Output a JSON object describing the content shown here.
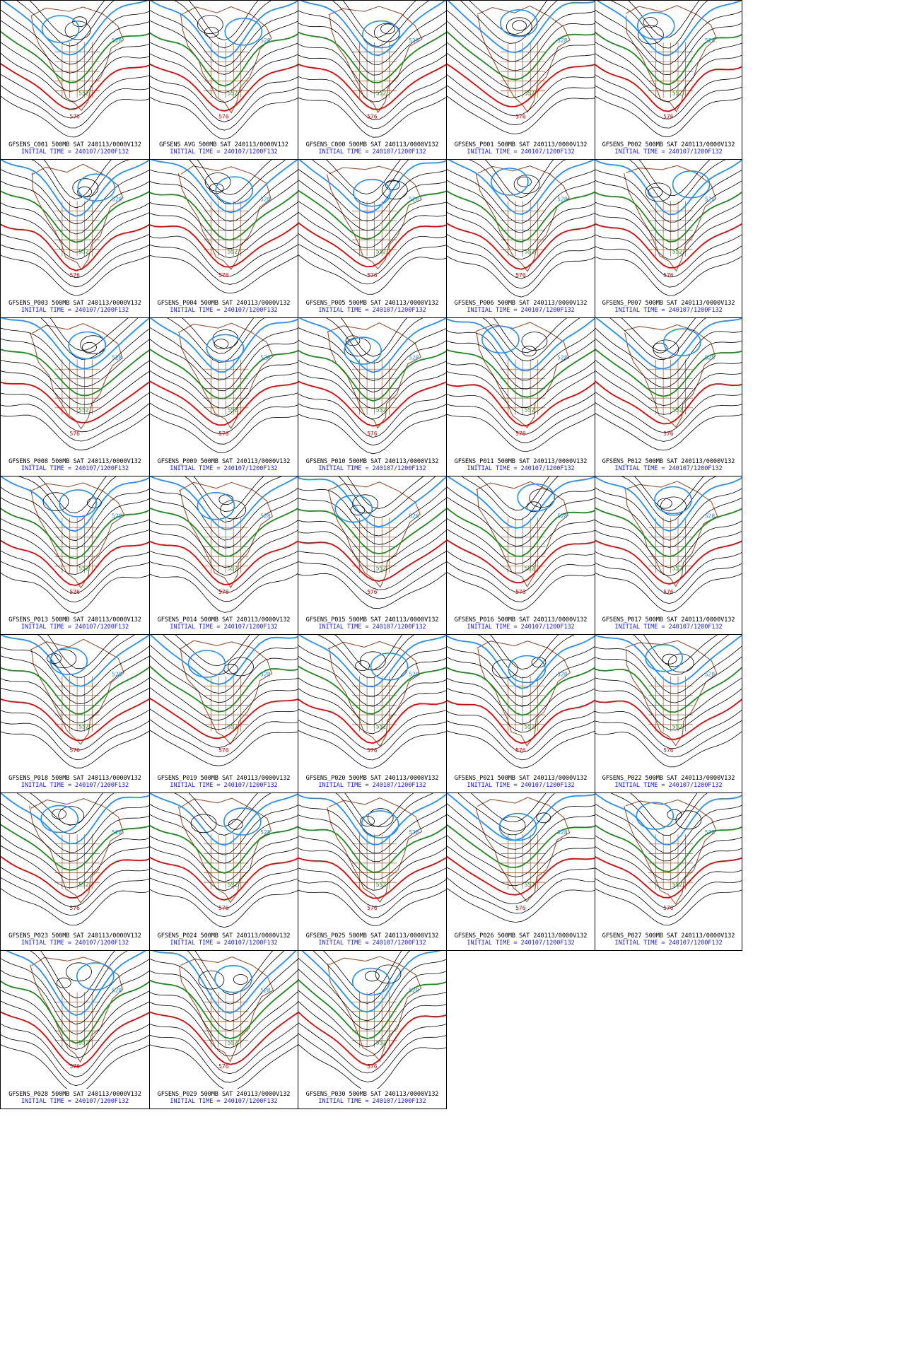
{
  "figure": {
    "columns": 5,
    "colors": {
      "background": "#ffffff",
      "border": "#000000",
      "contour": "#000000",
      "contour_528": "#1e90ff",
      "contour_552": "#1a8a1a",
      "contour_576": "#e60000",
      "coastline": "#a0522d",
      "caption_line1": "#000000",
      "caption_line2": "#1a1aff"
    }
  },
  "panels": [
    {
      "id": "C001",
      "title": "GFSENS_C001 500MB SAT 240113/0000V132",
      "init": "INITIAL TIME = 240107/1200F132",
      "labels": [
        "528",
        "552",
        "576"
      ]
    },
    {
      "id": "AVG",
      "title": "GFSENS AVG 500MB SAT 240113/0000V132",
      "init": "INITIAL TIME = 240107/1200F132",
      "labels": [
        "528",
        "552",
        "576"
      ]
    },
    {
      "id": "C000",
      "title": "GFSENS_C000 500MB SAT 240113/0000V132",
      "init": "INITIAL TIME = 240107/1200F132",
      "labels": [
        "528",
        "552",
        "576"
      ]
    },
    {
      "id": "P001",
      "title": "GFSENS_P001 500MB SAT 240113/0000V132",
      "init": "INITIAL TIME = 240107/1200F132",
      "labels": [
        "528",
        "552",
        "576"
      ]
    },
    {
      "id": "P002",
      "title": "GFSENS_P002 500MB SAT 240113/0000V132",
      "init": "INITIAL TIME = 240107/1200F132",
      "labels": [
        "528",
        "552",
        "576"
      ]
    },
    {
      "id": "P003",
      "title": "GFSENS_P003 500MB SAT 240113/0000V132",
      "init": "INITIAL TIME = 240107/1200F132",
      "labels": [
        "528",
        "552",
        "576"
      ]
    },
    {
      "id": "P004",
      "title": "GFSENS_P004 500MB SAT 240113/0000V132",
      "init": "INITIAL TIME = 240107/1200F132",
      "labels": [
        "528",
        "552",
        "576"
      ]
    },
    {
      "id": "P005",
      "title": "GFSENS_P005 500MB SAT 240113/0000V132",
      "init": "INITIAL TIME = 240107/1200F132",
      "labels": [
        "528",
        "552",
        "576"
      ]
    },
    {
      "id": "P006",
      "title": "GFSENS_P006 500MB SAT 240113/0000V132",
      "init": "INITIAL TIME = 240107/1200F132",
      "labels": [
        "528",
        "552",
        "576"
      ]
    },
    {
      "id": "P007",
      "title": "GFSENS_P007 500MB SAT 240113/0000V132",
      "init": "INITIAL TIME = 240107/1200F132",
      "labels": [
        "528",
        "552",
        "576"
      ]
    },
    {
      "id": "P008",
      "title": "GFSENS_P008 500MB SAT 240113/0000V132",
      "init": "INITIAL TIME = 240107/1200F132",
      "labels": [
        "528",
        "552",
        "576"
      ]
    },
    {
      "id": "P009",
      "title": "GFSENS_P009 500MB SAT 240113/0000V132",
      "init": "INITIAL TIME = 240107/1200F132",
      "labels": [
        "528",
        "552",
        "576"
      ]
    },
    {
      "id": "P010",
      "title": "GFSENS_P010 500MB SAT 240113/0000V132",
      "init": "INITIAL TIME = 240107/1200F132",
      "labels": [
        "528",
        "552",
        "576"
      ]
    },
    {
      "id": "P011",
      "title": "GFSENS_P011 500MB SAT 240113/0000V132",
      "init": "INITIAL TIME = 240107/1200F132",
      "labels": [
        "528",
        "552",
        "576"
      ]
    },
    {
      "id": "P012",
      "title": "GFSENS_P012 500MB SAT 240113/0000V132",
      "init": "INITIAL TIME = 240107/1200F132",
      "labels": [
        "528",
        "552",
        "576"
      ]
    },
    {
      "id": "P013",
      "title": "GFSENS_P013 500MB SAT 240113/0000V132",
      "init": "INITIAL TIME = 240107/1200F132",
      "labels": [
        "528",
        "552",
        "576"
      ]
    },
    {
      "id": "P014",
      "title": "GFSENS_P014 500MB SAT 240113/0000V132",
      "init": "INITIAL TIME = 240107/1200F132",
      "labels": [
        "528",
        "552",
        "576"
      ]
    },
    {
      "id": "P015",
      "title": "GFSENS_P015 500MB SAT 240113/0000V132",
      "init": "INITIAL TIME = 240107/1200F132",
      "labels": [
        "528",
        "552",
        "576"
      ]
    },
    {
      "id": "P016",
      "title": "GFSENS_P016 500MB SAT 240113/0000V132",
      "init": "INITIAL TIME = 240107/1200F132",
      "labels": [
        "528",
        "552",
        "576"
      ]
    },
    {
      "id": "P017",
      "title": "GFSENS_P017 500MB SAT 240113/0000V132",
      "init": "INITIAL TIME = 240107/1200F132",
      "labels": [
        "528",
        "552",
        "576"
      ]
    },
    {
      "id": "P018",
      "title": "GFSENS_P018 500MB SAT 240113/0000V132",
      "init": "INITIAL TIME = 240107/1200F132",
      "labels": [
        "528",
        "552",
        "576"
      ]
    },
    {
      "id": "P019",
      "title": "GFSENS_P019 500MB SAT 240113/0000V132",
      "init": "INITIAL TIME = 240107/1200F132",
      "labels": [
        "528",
        "552",
        "576"
      ]
    },
    {
      "id": "P020",
      "title": "GFSENS_P020 500MB SAT 240113/0000V132",
      "init": "INITIAL TIME = 240107/1200F132",
      "labels": [
        "528",
        "552",
        "576"
      ]
    },
    {
      "id": "P021",
      "title": "GFSENS_P021 500MB SAT 240113/0000V132",
      "init": "INITIAL TIME = 240107/1200F132",
      "labels": [
        "528",
        "552",
        "576"
      ]
    },
    {
      "id": "P022",
      "title": "GFSENS_P022 500MB SAT 240113/0000V132",
      "init": "INITIAL TIME = 240107/1200F132",
      "labels": [
        "528",
        "552",
        "576"
      ]
    },
    {
      "id": "P023",
      "title": "GFSENS_P023 500MB SAT 240113/0000V132",
      "init": "INITIAL TIME = 240107/1200F132",
      "labels": [
        "528",
        "552",
        "576"
      ]
    },
    {
      "id": "P024",
      "title": "GFSENS_P024 500MB SAT 240113/0000V132",
      "init": "INITIAL TIME = 240107/1200F132",
      "labels": [
        "528",
        "552",
        "576"
      ]
    },
    {
      "id": "P025",
      "title": "GFSENS_P025 500MB SAT 240113/0000V132",
      "init": "INITIAL TIME = 240107/1200F132",
      "labels": [
        "528",
        "552",
        "576"
      ]
    },
    {
      "id": "P026",
      "title": "GFSENS_P026 500MB SAT 240113/0000V132",
      "init": "INITIAL TIME = 240107/1200F132",
      "labels": [
        "528",
        "552",
        "576"
      ]
    },
    {
      "id": "P027",
      "title": "GFSENS_P027 500MB SAT 240113/0000V132",
      "init": "INITIAL TIME = 240107/1200F132",
      "labels": [
        "528",
        "552",
        "576"
      ]
    },
    {
      "id": "P028",
      "title": "GFSENS_P028 500MB SAT 240113/0000V132",
      "init": "INITIAL TIME = 240107/1200F132",
      "labels": [
        "528",
        "552",
        "576"
      ]
    },
    {
      "id": "P029",
      "title": "GFSENS_P029 500MB SAT 240113/0000V132",
      "init": "INITIAL TIME = 240107/1200F132",
      "labels": [
        "528",
        "552",
        "576"
      ]
    },
    {
      "id": "P030",
      "title": "GFSENS_P030 500MB SAT 240113/0000V132",
      "init": "INITIAL TIME = 240107/1200F132",
      "labels": [
        "528",
        "552",
        "576"
      ]
    }
  ]
}
